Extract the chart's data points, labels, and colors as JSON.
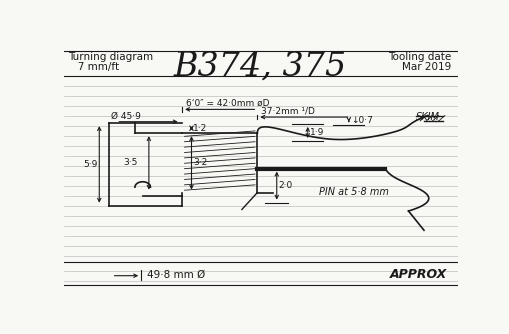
{
  "title_left1": "Turning diagram",
  "title_left2": "   7 mm/ft",
  "title_center": "B374, 375",
  "title_right1": "Tooling date",
  "title_right2": "Mar 2019",
  "bg_color": "#f8f8f4",
  "line_color": "#1a1a1a",
  "hline_color": "#b0b0b0",
  "dim_42_text": "6‘0″ = 42·0mm øD",
  "dim_372_text": "37·2mm ¹/D",
  "dim_459_text": "Ø 45·9",
  "dim_07_text": "↓0·7",
  "dim_12_text": "1·2",
  "dim_35_text": "3·5",
  "dim_32_text": "3·2",
  "dim_20_text": "2·0",
  "dim_19_text": "1·9",
  "dim_59_text": "5·9",
  "pin_text": "PIN at 5·8 mm",
  "skim_text": "SKIM",
  "dim_498_text": "49·8 mm Ø",
  "approx_text": "APPROX"
}
